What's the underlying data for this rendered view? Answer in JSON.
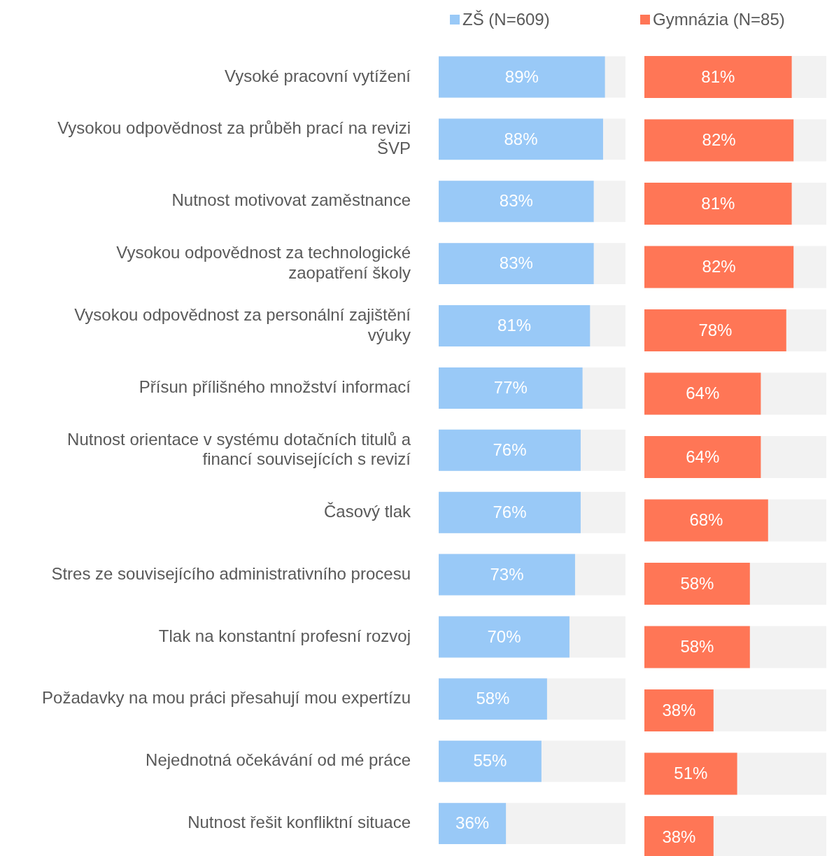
{
  "chart_data": [
    {
      "type": "bar",
      "orientation": "horizontal",
      "categories": [
        "Vysoké pracovní vytížení",
        "Vysokou odpovědnost za průběh prací na revizi\nŠVP",
        "Nutnost motivovat zaměstnance",
        "Vysokou odpovědnost za technologické\nzaopatření školy",
        "Vysokou odpovědnost za personální zajištění\nvýuky",
        "Přísun přílišného množství informací",
        "Nutnost orientace v systému dotačních titulů a\nfinancí souvisejících s revizí",
        "Časový tlak",
        "Stres ze souvisejícího administrativního procesu",
        "Tlak na konstantní profesní rozvoj",
        "Požadavky na mou práci přesahují mou expertízu",
        "Nejednotná očekávání od mé práce",
        "Nutnost řešit konfliktní situace"
      ],
      "series": [
        {
          "name": "ZŠ (N=609)",
          "color": "#99c9f7",
          "values": [
            89,
            88,
            83,
            83,
            81,
            77,
            76,
            76,
            73,
            70,
            58,
            55,
            36
          ],
          "value_labels": [
            "89%",
            "88%",
            "83%",
            "83%",
            "81%",
            "77%",
            "76%",
            "76%",
            "73%",
            "70%",
            "58%",
            "55%",
            "36%"
          ]
        }
      ],
      "bands": [
        {
          "axis": "x",
          "from": 0,
          "to": 100,
          "color": "#f2f2f2"
        }
      ],
      "legend": "top",
      "tick_labels": "y",
      "grid": false
    },
    {
      "type": "bar",
      "orientation": "horizontal",
      "categories": [
        null,
        null,
        null,
        null,
        null,
        null,
        null,
        null,
        null,
        null,
        null,
        null,
        null
      ],
      "series": [
        {
          "name": "Gymnázia (N=85)",
          "color": "#ff7656",
          "values": [
            81,
            82,
            81,
            82,
            78,
            64,
            64,
            68,
            58,
            58,
            38,
            51,
            38
          ],
          "value_labels": [
            "81%",
            "82%",
            "81%",
            "82%",
            "78%",
            "64%",
            "64%",
            "68%",
            "58%",
            "58%",
            "38%",
            "51%",
            "38%"
          ]
        }
      ],
      "bands": [
        {
          "axis": "x",
          "from": 0,
          "to": 100,
          "color": "#f2f2f2"
        }
      ],
      "legend": "top",
      "tick_labels": false,
      "grid": false
    }
  ]
}
